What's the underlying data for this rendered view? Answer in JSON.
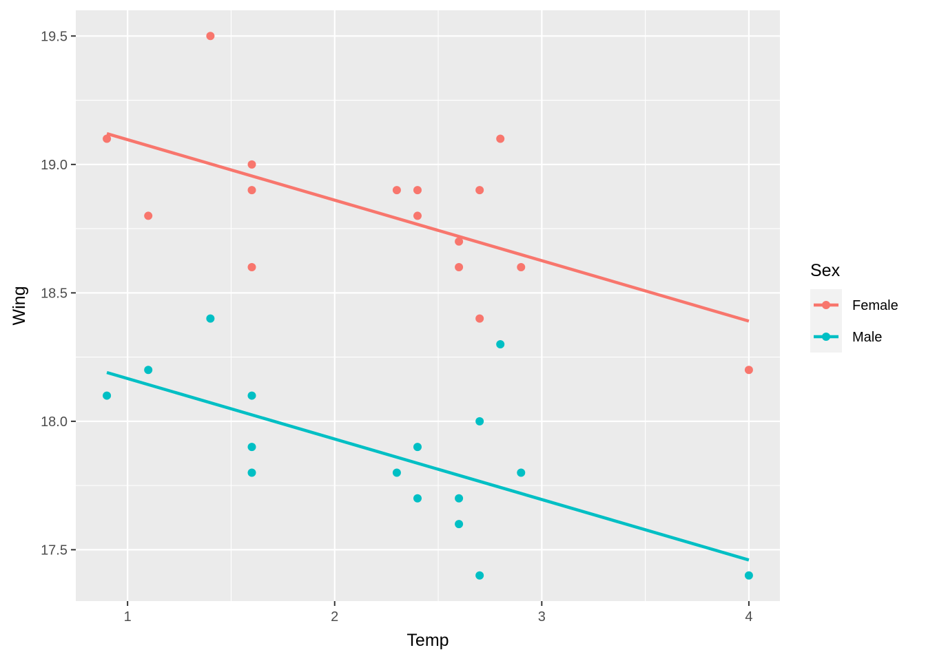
{
  "chart_data": {
    "type": "scatter",
    "title": "",
    "xlabel": "Temp",
    "ylabel": "Wing",
    "xlim": [
      0.75,
      4.15
    ],
    "ylim": [
      17.3,
      19.6
    ],
    "x_ticks": [
      1,
      2,
      3,
      4
    ],
    "x_tick_labels": [
      "1",
      "2",
      "3",
      "4"
    ],
    "y_ticks": [
      17.5,
      18.0,
      18.5,
      19.0,
      19.5
    ],
    "y_tick_labels": [
      "17.5",
      "18.0",
      "18.5",
      "19.0",
      "19.5"
    ],
    "grid": true,
    "legend": {
      "title": "Sex",
      "placement": "right"
    },
    "series": [
      {
        "name": "Female",
        "color": "#F8766D",
        "points": [
          [
            0.9,
            19.1
          ],
          [
            1.1,
            18.8
          ],
          [
            1.4,
            19.5
          ],
          [
            1.6,
            19.0
          ],
          [
            1.6,
            18.9
          ],
          [
            1.6,
            18.6
          ],
          [
            2.3,
            18.9
          ],
          [
            2.4,
            18.9
          ],
          [
            2.4,
            18.8
          ],
          [
            2.6,
            18.7
          ],
          [
            2.6,
            18.6
          ],
          [
            2.7,
            18.9
          ],
          [
            2.7,
            18.4
          ],
          [
            2.8,
            19.1
          ],
          [
            2.9,
            18.6
          ],
          [
            4.0,
            18.2
          ]
        ],
        "fit_line": [
          [
            0.9,
            19.12
          ],
          [
            4.0,
            18.39
          ]
        ]
      },
      {
        "name": "Male",
        "color": "#00BFC4",
        "points": [
          [
            0.9,
            18.1
          ],
          [
            1.1,
            18.2
          ],
          [
            1.4,
            18.4
          ],
          [
            1.6,
            18.1
          ],
          [
            1.6,
            17.9
          ],
          [
            1.6,
            17.8
          ],
          [
            2.3,
            17.8
          ],
          [
            2.4,
            17.9
          ],
          [
            2.4,
            17.7
          ],
          [
            2.6,
            17.7
          ],
          [
            2.6,
            17.6
          ],
          [
            2.7,
            18.0
          ],
          [
            2.7,
            17.4
          ],
          [
            2.8,
            18.3
          ],
          [
            2.9,
            17.8
          ],
          [
            4.0,
            17.4
          ]
        ],
        "fit_line": [
          [
            0.9,
            18.19
          ],
          [
            4.0,
            17.46
          ]
        ]
      }
    ]
  }
}
